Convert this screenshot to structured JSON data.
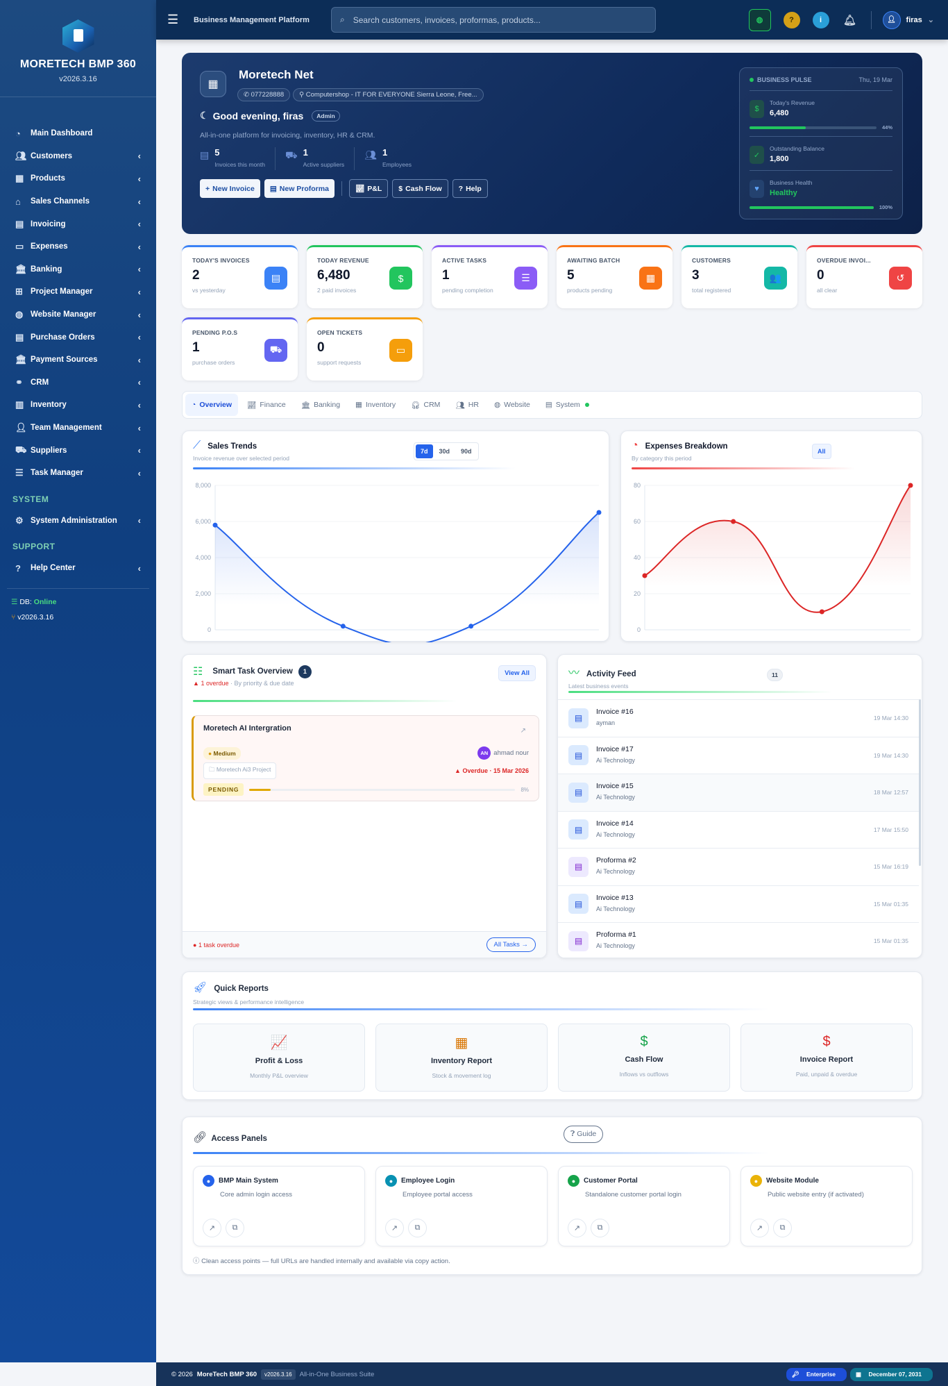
{
  "sidebar": {
    "brand": "MORETECH BMP 360",
    "version": "v2026.3.16",
    "items": [
      {
        "label": "Main Dashboard",
        "icon": "dashboard-icon"
      },
      {
        "label": "Customers",
        "icon": "users-icon"
      },
      {
        "label": "Products",
        "icon": "boxes-icon"
      },
      {
        "label": "Sales Channels",
        "icon": "store-icon"
      },
      {
        "label": "Invoicing",
        "icon": "invoice-icon"
      },
      {
        "label": "Expenses",
        "icon": "wallet-icon"
      },
      {
        "label": "Banking",
        "icon": "bank-icon"
      },
      {
        "label": "Project Manager",
        "icon": "sitemap-icon"
      },
      {
        "label": "Website Manager",
        "icon": "globe-icon"
      },
      {
        "label": "Purchase Orders",
        "icon": "file-icon"
      },
      {
        "label": "Payment Sources",
        "icon": "bank-icon"
      },
      {
        "label": "CRM",
        "icon": "handshake-icon"
      },
      {
        "label": "Inventory",
        "icon": "warehouse-icon"
      },
      {
        "label": "Team Management",
        "icon": "user-tie-icon"
      },
      {
        "label": "Suppliers",
        "icon": "truck-icon"
      },
      {
        "label": "Task Manager",
        "icon": "list-check-icon"
      }
    ],
    "system_heading": "SYSTEM",
    "system_item": "System Administration",
    "support_heading": "SUPPORT",
    "support_item": "Help Center",
    "db_label": "DB:",
    "db_status": "Online",
    "build": "v2026.3.16"
  },
  "topbar": {
    "title": "Business Management Platform",
    "search_placeholder": "Search customers, invoices, proformas, products...",
    "user": "firas"
  },
  "hero": {
    "company": "Moretech Net",
    "phone": "077228888",
    "address": "Computershop - IT FOR EVERYONE Sierra Leone, Free...",
    "greeting": "Good evening, firas",
    "role": "Admin",
    "tagline": "All-in-one platform for invoicing, inventory, HR & CRM.",
    "stats": [
      {
        "value": "5",
        "label": "Invoices this month"
      },
      {
        "value": "1",
        "label": "Active suppliers"
      },
      {
        "value": "1",
        "label": "Employees"
      }
    ],
    "buttons": [
      "New Invoice",
      "New Proforma",
      "P&L",
      "Cash Flow",
      "Help"
    ],
    "pulse": {
      "title": "BUSINESS PULSE",
      "date": "Thu, 19 Mar",
      "revenue_label": "Today's Revenue",
      "revenue": "6,480",
      "revenue_pct": 44,
      "revenue_pct_label": "44%",
      "balance_label": "Outstanding Balance",
      "balance": "1,800",
      "health_label": "Business Health",
      "health": "Healthy",
      "health_pct": 100,
      "health_pct_label": "100%"
    }
  },
  "stats": [
    {
      "title": "TODAY'S INVOICES",
      "value": "2",
      "sub": "vs yesterday",
      "color": "#3b82f6",
      "icon": "invoice-icon",
      "glyph": "▤"
    },
    {
      "title": "TODAY REVENUE",
      "value": "6,480",
      "sub": "2 paid invoices",
      "color": "#22c55e",
      "icon": "money-bag-icon",
      "glyph": "$"
    },
    {
      "title": "ACTIVE TASKS",
      "value": "1",
      "sub": "pending completion",
      "color": "#8b5cf6",
      "icon": "list-check-icon",
      "glyph": "☰"
    },
    {
      "title": "AWAITING BATCH",
      "value": "5",
      "sub": "products pending",
      "color": "#f97316",
      "icon": "boxes-icon",
      "glyph": "▦"
    },
    {
      "title": "CUSTOMERS",
      "value": "3",
      "sub": "total registered",
      "color": "#14b8a6",
      "icon": "users-icon",
      "glyph": "👥"
    },
    {
      "title": "OVERDUE INVOI...",
      "value": "0",
      "sub": "all clear",
      "color": "#ef4444",
      "icon": "history-icon",
      "glyph": "↺"
    },
    {
      "title": "PENDING P.O.S",
      "value": "1",
      "sub": "purchase orders",
      "color": "#6366f1",
      "icon": "truck-icon",
      "glyph": "⛟"
    },
    {
      "title": "OPEN TICKETS",
      "value": "0",
      "sub": "support requests",
      "color": "#f59e0b",
      "icon": "ticket-icon",
      "glyph": "▭"
    }
  ],
  "tabs": [
    "Overview",
    "Finance",
    "Banking",
    "Inventory",
    "CRM",
    "HR",
    "Website",
    "System"
  ],
  "sales": {
    "title": "Sales Trends",
    "subtitle": "Invoice revenue over selected period",
    "ranges": [
      "7d",
      "30d",
      "90d"
    ]
  },
  "expenses": {
    "title": "Expenses Breakdown",
    "subtitle": "By category this period",
    "filter": "All"
  },
  "chart_data": [
    {
      "type": "line",
      "title": "Sales Trends",
      "x": [
        1,
        2,
        3,
        4
      ],
      "values": [
        5800,
        200,
        200,
        6500
      ],
      "ylim": [
        0,
        8000
      ],
      "yticks": [
        "0",
        "2,000",
        "4,000",
        "6,000",
        "8,000"
      ],
      "color": "#2563eb",
      "grid": true
    },
    {
      "type": "line",
      "title": "Expenses Breakdown",
      "x": [
        1,
        2,
        3,
        4
      ],
      "values": [
        30,
        60,
        10,
        80
      ],
      "ylim": [
        0,
        80
      ],
      "yticks": [
        "0",
        "20",
        "40",
        "60",
        "80"
      ],
      "color": "#dc2626",
      "grid": true
    }
  ],
  "tasks": {
    "title": "Smart Task Overview",
    "count": "1",
    "overdue": "1 overdue",
    "sub": "By priority & due date",
    "view_all": "View All",
    "item": {
      "name": "Moretech AI Intergration",
      "priority": "Medium",
      "assignee": "ahmad nour",
      "initials": "AN",
      "project": "Moretech Ai3 Project",
      "due": "Overdue · 15 Mar 2026",
      "status": "PENDING",
      "progress": 8,
      "progress_label": "8%"
    },
    "footer_note": "1 task overdue",
    "all_tasks": "All Tasks"
  },
  "activity": {
    "title": "Activity Feed",
    "subtitle": "Latest business events",
    "count": "11",
    "items": [
      {
        "title": "Invoice #16",
        "sub": "ayman",
        "time": "19 Mar 14:30",
        "kind": "invoice"
      },
      {
        "title": "Invoice #17",
        "sub": "Ai Technology",
        "time": "19 Mar 14:30",
        "kind": "invoice"
      },
      {
        "title": "Invoice #15",
        "sub": "Ai Technology",
        "time": "18 Mar 12:57",
        "kind": "invoice"
      },
      {
        "title": "Invoice #14",
        "sub": "Ai Technology",
        "time": "17 Mar 15:50",
        "kind": "invoice"
      },
      {
        "title": "Proforma #2",
        "sub": "Ai Technology",
        "time": "15 Mar 16:19",
        "kind": "proforma"
      },
      {
        "title": "Invoice #13",
        "sub": "Ai Technology",
        "time": "15 Mar 01:35",
        "kind": "invoice"
      },
      {
        "title": "Proforma #1",
        "sub": "Ai Technology",
        "time": "15 Mar 01:35",
        "kind": "proforma"
      }
    ]
  },
  "reports": {
    "title": "Quick Reports",
    "subtitle": "Strategic views & performance intelligence",
    "items": [
      {
        "title": "Profit & Loss",
        "sub": "Monthly P&L overview",
        "color": "#2563eb",
        "glyph": "📈"
      },
      {
        "title": "Inventory Report",
        "sub": "Stock & movement log",
        "color": "#d97706",
        "glyph": "▦"
      },
      {
        "title": "Cash Flow",
        "sub": "Inflows vs outflows",
        "color": "#16a34a",
        "glyph": "$"
      },
      {
        "title": "Invoice Report",
        "sub": "Paid, unpaid & overdue",
        "color": "#dc2626",
        "glyph": "$"
      }
    ]
  },
  "access": {
    "title": "Access Panels",
    "guide": "Guide",
    "note": "Clean access points — full URLs are handled internally and available via copy action.",
    "items": [
      {
        "title": "BMP Main System",
        "sub": "Core admin login access",
        "color": "#2563eb"
      },
      {
        "title": "Employee Login",
        "sub": "Employee portal access",
        "color": "#0891b2"
      },
      {
        "title": "Customer Portal",
        "sub": "Standalone customer portal login",
        "color": "#16a34a"
      },
      {
        "title": "Website Module",
        "sub": "Public website entry (if activated)",
        "color": "#eab308"
      }
    ]
  },
  "footer": {
    "copyright": "© 2026",
    "product": "MoreTech BMP 360",
    "version": "v2026.3.16",
    "tagline": "All-in-One Business Suite",
    "plan": "Enterprise",
    "expiry": "December 07, 2031"
  }
}
